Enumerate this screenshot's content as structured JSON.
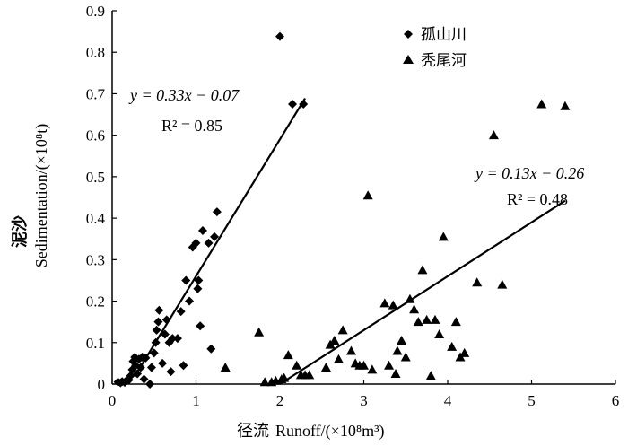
{
  "chart_data": {
    "type": "scatter",
    "xlabel_cn": "径流",
    "xlabel": "Runoff/(×10⁸m³)",
    "ylabel_cn": "泥沙",
    "ylabel": "Sedimentation/(×10⁸t)",
    "xlim": [
      0,
      6
    ],
    "ylim": [
      0,
      0.9
    ],
    "x_ticks": [
      "0",
      "1",
      "2",
      "3",
      "4",
      "5",
      "6"
    ],
    "y_ticks": [
      "0",
      "0.1",
      "0.2",
      "0.3",
      "0.4",
      "0.5",
      "0.6",
      "0.7",
      "0.8",
      "0.9"
    ],
    "grid": false,
    "legend_position": "top-right",
    "series": [
      {
        "name": "孤山川",
        "marker": "diamond",
        "equation": "y = 0.33x −  0.07",
        "r2": "R² = 0.85",
        "fit": {
          "slope": 0.33,
          "intercept": -0.07,
          "x_range": [
            0.28,
            2.3
          ]
        },
        "points": [
          [
            0.07,
            0.005
          ],
          [
            0.1,
            0.003
          ],
          [
            0.12,
            0.006
          ],
          [
            0.15,
            0.004
          ],
          [
            0.17,
            0.008
          ],
          [
            0.2,
            0.01
          ],
          [
            0.22,
            0.02
          ],
          [
            0.24,
            0.035
          ],
          [
            0.25,
            0.055
          ],
          [
            0.27,
            0.065
          ],
          [
            0.28,
            0.045
          ],
          [
            0.3,
            0.025
          ],
          [
            0.32,
            0.06
          ],
          [
            0.34,
            0.04
          ],
          [
            0.36,
            0.065
          ],
          [
            0.38,
            0.012
          ],
          [
            0.4,
            0.063
          ],
          [
            0.45,
            0.0
          ],
          [
            0.47,
            0.04
          ],
          [
            0.5,
            0.075
          ],
          [
            0.52,
            0.1
          ],
          [
            0.53,
            0.13
          ],
          [
            0.55,
            0.15
          ],
          [
            0.56,
            0.178
          ],
          [
            0.6,
            0.05
          ],
          [
            0.63,
            0.12
          ],
          [
            0.65,
            0.155
          ],
          [
            0.68,
            0.1
          ],
          [
            0.7,
            0.03
          ],
          [
            0.72,
            0.11
          ],
          [
            0.78,
            0.11
          ],
          [
            0.82,
            0.175
          ],
          [
            0.85,
            0.045
          ],
          [
            0.88,
            0.25
          ],
          [
            0.92,
            0.2
          ],
          [
            0.96,
            0.33
          ],
          [
            1.0,
            0.34
          ],
          [
            1.02,
            0.23
          ],
          [
            1.03,
            0.25
          ],
          [
            1.05,
            0.14
          ],
          [
            1.08,
            0.37
          ],
          [
            1.15,
            0.34
          ],
          [
            1.18,
            0.085
          ],
          [
            1.22,
            0.355
          ],
          [
            1.25,
            0.415
          ],
          [
            2.0,
            0.838
          ],
          [
            2.15,
            0.675
          ],
          [
            2.28,
            0.675
          ]
        ]
      },
      {
        "name": "秃尾河",
        "marker": "triangle",
        "equation": "y = 0.13x −  0.26",
        "r2": "R² = 0.48",
        "fit": {
          "slope": 0.13,
          "intercept": -0.26,
          "x_range": [
            2.0,
            5.4
          ]
        },
        "points": [
          [
            1.35,
            0.04
          ],
          [
            1.75,
            0.125
          ],
          [
            1.82,
            0.005
          ],
          [
            1.9,
            0.005
          ],
          [
            1.95,
            0.008
          ],
          [
            2.02,
            0.012
          ],
          [
            2.05,
            0.015
          ],
          [
            2.1,
            0.07
          ],
          [
            2.2,
            0.045
          ],
          [
            2.25,
            0.022
          ],
          [
            2.3,
            0.022
          ],
          [
            2.35,
            0.022
          ],
          [
            2.55,
            0.04
          ],
          [
            2.6,
            0.095
          ],
          [
            2.65,
            0.105
          ],
          [
            2.7,
            0.06
          ],
          [
            2.75,
            0.13
          ],
          [
            2.85,
            0.08
          ],
          [
            2.9,
            0.05
          ],
          [
            2.95,
            0.045
          ],
          [
            3.0,
            0.045
          ],
          [
            3.05,
            0.455
          ],
          [
            3.1,
            0.035
          ],
          [
            3.25,
            0.195
          ],
          [
            3.3,
            0.045
          ],
          [
            3.35,
            0.19
          ],
          [
            3.38,
            0.025
          ],
          [
            3.4,
            0.08
          ],
          [
            3.45,
            0.105
          ],
          [
            3.5,
            0.065
          ],
          [
            3.55,
            0.205
          ],
          [
            3.6,
            0.18
          ],
          [
            3.65,
            0.15
          ],
          [
            3.7,
            0.275
          ],
          [
            3.75,
            0.155
          ],
          [
            3.8,
            0.02
          ],
          [
            3.85,
            0.155
          ],
          [
            3.9,
            0.12
          ],
          [
            3.95,
            0.355
          ],
          [
            4.05,
            0.09
          ],
          [
            4.1,
            0.15
          ],
          [
            4.15,
            0.065
          ],
          [
            4.2,
            0.075
          ],
          [
            4.35,
            0.245
          ],
          [
            4.55,
            0.6
          ],
          [
            4.65,
            0.24
          ],
          [
            5.12,
            0.675
          ],
          [
            5.4,
            0.67
          ]
        ]
      }
    ]
  }
}
